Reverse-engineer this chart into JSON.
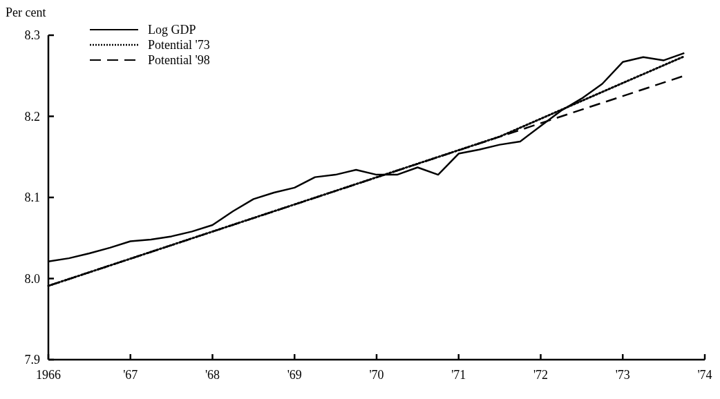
{
  "chart_data": {
    "type": "line",
    "ylabel": "Per cent",
    "xlim": [
      1966,
      1974
    ],
    "xticks": [
      {
        "value": 1966,
        "label": "1966"
      },
      {
        "value": 1967,
        "label": "'67"
      },
      {
        "value": 1968,
        "label": "'68"
      },
      {
        "value": 1969,
        "label": "'69"
      },
      {
        "value": 1970,
        "label": "'70"
      },
      {
        "value": 1971,
        "label": "'71"
      },
      {
        "value": 1972,
        "label": "'72"
      },
      {
        "value": 1973,
        "label": "'73"
      },
      {
        "value": 1974,
        "label": "'74"
      }
    ],
    "ylim": [
      7.9,
      8.3
    ],
    "yticks": [
      {
        "value": 7.9,
        "label": "7.9"
      },
      {
        "value": 8.0,
        "label": "8.0"
      },
      {
        "value": 8.1,
        "label": "8.1"
      },
      {
        "value": 8.2,
        "label": "8.2"
      },
      {
        "value": 8.3,
        "label": "8.3"
      }
    ],
    "grid": false,
    "legend": "top left",
    "series": [
      {
        "name": "Log GDP",
        "color": "#000000",
        "line_style": "solid",
        "x": [
          1966,
          1966.25,
          1966.5,
          1966.75,
          1967,
          1967.25,
          1967.5,
          1967.75,
          1968,
          1968.25,
          1968.5,
          1968.75,
          1969,
          1969.25,
          1969.5,
          1969.75,
          1970,
          1970.25,
          1970.5,
          1970.75,
          1971,
          1971.25,
          1971.5,
          1971.75,
          1972,
          1972.25,
          1972.5,
          1972.75,
          1973,
          1973.25,
          1973.5,
          1973.75
        ],
        "values": [
          8.021,
          8.025,
          8.031,
          8.038,
          8.046,
          8.048,
          8.052,
          8.058,
          8.066,
          8.083,
          8.098,
          8.106,
          8.112,
          8.125,
          8.128,
          8.134,
          8.128,
          8.128,
          8.137,
          8.128,
          8.154,
          8.159,
          8.165,
          8.169,
          8.188,
          8.207,
          8.222,
          8.24,
          8.267,
          8.273,
          8.269,
          8.278
        ]
      },
      {
        "name": "Potential '73",
        "color": "#000000",
        "line_style": "dotted",
        "x": [
          1966,
          1971.5,
          1973.75
        ],
        "values": [
          7.991,
          8.175,
          8.274
        ]
      },
      {
        "name": "Potential '98",
        "color": "#000000",
        "line_style": "dashed",
        "x": [
          1966,
          1973.75
        ],
        "values": [
          7.991,
          8.25
        ]
      }
    ]
  }
}
